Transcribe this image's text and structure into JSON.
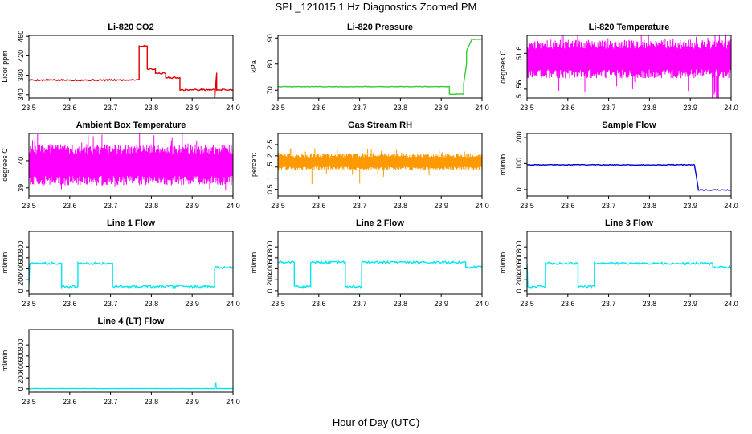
{
  "page": {
    "title": "SPL_121015  1 Hz Diagnostics Zoomed PM",
    "xlabel": "Hour of Day (UTC)"
  },
  "chart_data": [
    {
      "id": "co2",
      "type": "line",
      "title": "Li-820 CO2",
      "ylabel": "Licor ppm",
      "color": "#dd0000",
      "xlim": [
        23.5,
        24.0
      ],
      "ylim": [
        333,
        462
      ],
      "xticks": [
        "23.5",
        "23.6",
        "23.7",
        "23.8",
        "23.9",
        "24.0"
      ],
      "yticks": [
        340,
        380,
        420,
        460
      ],
      "noise": 1.5,
      "x": [
        23.5,
        23.745,
        23.75,
        23.77,
        23.77,
        23.79,
        23.79,
        23.81,
        23.81,
        23.835,
        23.835,
        23.87,
        23.87,
        23.955,
        23.955,
        23.96,
        23.96,
        24.0
      ],
      "y": [
        370,
        370,
        371,
        371,
        440,
        440,
        393,
        393,
        384,
        384,
        375,
        375,
        350,
        350,
        330,
        385,
        350,
        350
      ]
    },
    {
      "id": "pressure",
      "type": "line",
      "title": "Li-820 Pressure",
      "ylabel": "kPa",
      "color": "#33cc33",
      "xlim": [
        23.5,
        24.0
      ],
      "ylim": [
        67,
        91
      ],
      "xticks": [
        "23.5",
        "23.6",
        "23.7",
        "23.8",
        "23.9",
        "24.0"
      ],
      "yticks": [
        70,
        80,
        90
      ],
      "noise": 0.1,
      "x": [
        23.5,
        23.92,
        23.92,
        23.955,
        23.955,
        23.962,
        23.962,
        23.975,
        24.0
      ],
      "y": [
        71.4,
        71.4,
        68.5,
        68.5,
        72.5,
        80,
        85,
        89.5,
        89.5
      ]
    },
    {
      "id": "temperature",
      "type": "band",
      "title": "Li-820 Temperature",
      "ylabel": "degrees C",
      "color": "#ff00ff",
      "xlim": [
        23.5,
        24.0
      ],
      "ylim": [
        51.55,
        51.62
      ],
      "xticks": [
        "23.5",
        "23.6",
        "23.7",
        "23.8",
        "23.9",
        "24.0"
      ],
      "yticks": [
        51.56,
        51.6
      ],
      "y_low": 51.575,
      "y_high": 51.615,
      "spike": 51.55,
      "seed": 7
    },
    {
      "id": "ambient",
      "type": "band",
      "title": "Ambient Box Temperature",
      "ylabel": "degrees C",
      "color": "#ff00ff",
      "xlim": [
        23.5,
        24.0
      ],
      "ylim": [
        38.7,
        41.0
      ],
      "xticks": [
        "23.5",
        "23.6",
        "23.7",
        "23.8",
        "23.9",
        "24.0"
      ],
      "yticks": [
        39.0,
        40.0
      ],
      "y_low": 39.2,
      "y_high": 40.6,
      "spike": 38.9,
      "seed": 11
    },
    {
      "id": "rh",
      "type": "band",
      "title": "Gas Stream RH",
      "ylabel": "percent",
      "color": "#ff9900",
      "xlim": [
        23.5,
        24.0
      ],
      "ylim": [
        0.2,
        3.0
      ],
      "xticks": [
        "23.5",
        "23.6",
        "23.7",
        "23.8",
        "23.9",
        "24.0"
      ],
      "yticks": [
        0.5,
        1.0,
        1.5,
        2.0,
        2.5
      ],
      "y_low": 1.4,
      "y_high": 2.1,
      "spike": 0.6,
      "seed": 19
    },
    {
      "id": "sample",
      "type": "line",
      "title": "Sample Flow",
      "ylabel": "ml/min",
      "color": "#0000cc",
      "xlim": [
        23.5,
        24.0
      ],
      "ylim": [
        -25,
        215
      ],
      "xticks": [
        "23.5",
        "23.6",
        "23.7",
        "23.8",
        "23.9",
        "24.0"
      ],
      "yticks": [
        0,
        100,
        200
      ],
      "noise": 1.5,
      "x": [
        23.5,
        23.91,
        23.915,
        23.92,
        24.0
      ],
      "y": [
        95,
        95,
        50,
        -2,
        -2
      ]
    },
    {
      "id": "line1",
      "type": "line",
      "title": "Line 1 Flow",
      "ylabel": "ml/min",
      "color": "#00e5ee",
      "xlim": [
        23.5,
        24.0
      ],
      "ylim": [
        -60,
        1080
      ],
      "xticks": [
        "23.5",
        "23.6",
        "23.7",
        "23.8",
        "23.9",
        "24.0"
      ],
      "yticks": [
        0,
        200,
        400,
        600,
        800
      ],
      "noise": 20,
      "x": [
        23.5,
        23.502,
        23.58,
        23.58,
        23.62,
        23.62,
        23.705,
        23.705,
        23.955,
        23.955,
        24.0
      ],
      "y": [
        100,
        500,
        500,
        80,
        80,
        500,
        500,
        80,
        80,
        420,
        420
      ]
    },
    {
      "id": "line2",
      "type": "line",
      "title": "Line 2 Flow",
      "ylabel": "ml/min",
      "color": "#00e5ee",
      "xlim": [
        23.5,
        24.0
      ],
      "ylim": [
        -60,
        1080
      ],
      "xticks": [
        "23.5",
        "23.6",
        "23.7",
        "23.8",
        "23.9",
        "24.0"
      ],
      "yticks": [
        0,
        200,
        400,
        600,
        800
      ],
      "noise": 20,
      "x": [
        23.5,
        23.54,
        23.54,
        23.58,
        23.58,
        23.665,
        23.665,
        23.705,
        23.705,
        23.96,
        23.96,
        24.0
      ],
      "y": [
        520,
        520,
        80,
        80,
        520,
        520,
        80,
        80,
        520,
        520,
        430,
        430
      ]
    },
    {
      "id": "line3",
      "type": "line",
      "title": "Line 3 Flow",
      "ylabel": "ml/min",
      "color": "#00e5ee",
      "xlim": [
        23.5,
        24.0
      ],
      "ylim": [
        -60,
        1080
      ],
      "xticks": [
        "23.5",
        "23.6",
        "23.7",
        "23.8",
        "23.9",
        "24.0"
      ],
      "yticks": [
        0,
        200,
        400,
        600,
        800
      ],
      "noise": 20,
      "x": [
        23.5,
        23.502,
        23.545,
        23.545,
        23.625,
        23.625,
        23.665,
        23.665,
        23.955,
        23.955,
        24.0
      ],
      "y": [
        500,
        80,
        80,
        500,
        500,
        80,
        80,
        500,
        500,
        430,
        430
      ]
    },
    {
      "id": "line4",
      "type": "line",
      "title": "Line 4 (LT) Flow",
      "ylabel": "ml/min",
      "color": "#00e5ee",
      "xlim": [
        23.5,
        24.0
      ],
      "ylim": [
        -60,
        1080
      ],
      "xticks": [
        "23.5",
        "23.6",
        "23.7",
        "23.8",
        "23.9",
        "24.0"
      ],
      "yticks": [
        0,
        200,
        400,
        600,
        800
      ],
      "noise": 2,
      "x": [
        23.5,
        23.955,
        23.956,
        23.958,
        23.959,
        24.0
      ],
      "y": [
        5,
        5,
        110,
        110,
        5,
        5
      ]
    }
  ]
}
